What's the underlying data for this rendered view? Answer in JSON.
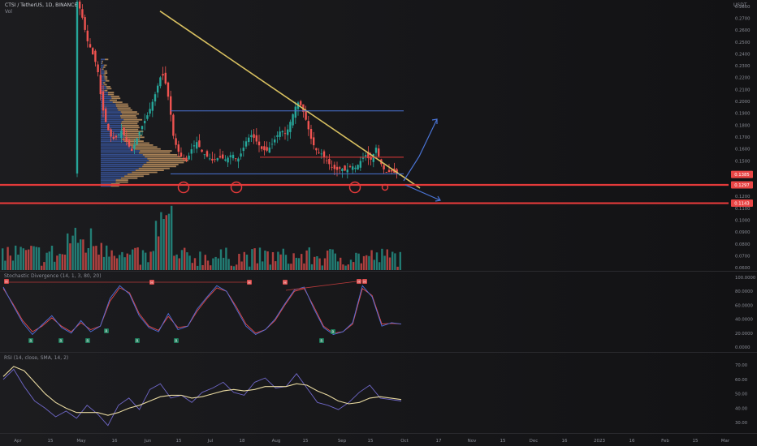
{
  "header": {
    "symbol_line": "CTSI / TetherUS, 1D, BINANCE",
    "volume_label": "Vol",
    "currency": "USDT"
  },
  "price_pane": {
    "price_ticks": [
      "0.2800",
      "0.2700",
      "0.2600",
      "0.2500",
      "0.2400",
      "0.2300",
      "0.2200",
      "0.2100",
      "0.2000",
      "0.1900",
      "0.1800",
      "0.1700",
      "0.1600",
      "0.1500",
      "0.1400",
      "0.1300",
      "0.1200",
      "0.1100",
      "0.1000",
      "0.0900",
      "0.0800",
      "0.0700",
      "0.0600"
    ],
    "current_price_tag": "0.1385",
    "support_tag_1": "0.1297",
    "support_tag_2": "0.1143"
  },
  "stoch_pane": {
    "title": "Stochastic Divergence (14, 1, 3, 80, 20)",
    "ticks": [
      "100.0000",
      "80.0000",
      "60.0000",
      "40.0000",
      "20.0000",
      "0.0000"
    ],
    "hidden_label": "H",
    "regular_label": "R"
  },
  "rsi_pane": {
    "title": "RSI (14, close, SMA, 14, 2)",
    "ticks": [
      "70.00",
      "60.00",
      "50.00",
      "40.00",
      "30.00"
    ]
  },
  "time_axis": [
    "Apr",
    "15",
    "May",
    "16",
    "Jun",
    "15",
    "Jul",
    "18",
    "Aug",
    "15",
    "Sep",
    "15",
    "Oct",
    "17",
    "Nov",
    "15",
    "Dec",
    "16",
    "2023",
    "16",
    "Feb",
    "15",
    "Mar"
  ],
  "colors": {
    "background": "#141416",
    "up": "#26a69a",
    "down": "#ef5350",
    "resistance_blue": "#4a74d6",
    "trendline_yellow": "#d8c060",
    "support_red": "#e43a3a",
    "stoch_k": "#4f6fdc",
    "stoch_d": "#e24a4a",
    "rsi_line": "#6f67c8",
    "rsi_ma": "#e8d9a0"
  },
  "chart_data": [
    {
      "type": "candlestick",
      "title": "CTSI / TetherUS, 1D, BINANCE",
      "x": [
        "Apr",
        "May",
        "Jun",
        "Jul",
        "Aug",
        "Sep",
        "Oct"
      ],
      "ylim": [
        0.058,
        0.284
      ],
      "annotations": {
        "trendline_from": 0.276,
        "trendline_to": 0.127,
        "range_high": 0.192,
        "range_mid": 0.153,
        "range_low": 0.139,
        "support_1": 0.1297,
        "support_2": 0.1143,
        "current_price": 0.1385
      }
    },
    {
      "type": "line",
      "title": "Stochastic Divergence (14, 1, 3, 80, 20)",
      "ylim": [
        0,
        100
      ],
      "series": [
        {
          "name": "K",
          "values": [
            86,
            60,
            35,
            18,
            32,
            45,
            28,
            20,
            38,
            22,
            30,
            70,
            88,
            76,
            45,
            28,
            22,
            48,
            25,
            30,
            55,
            72,
            88,
            80,
            55,
            30,
            18,
            25,
            40,
            62,
            82,
            86,
            55,
            28,
            18,
            22,
            35,
            88,
            72,
            30,
            35,
            33
          ]
        },
        {
          "name": "D",
          "values": [
            84,
            62,
            38,
            22,
            30,
            42,
            30,
            22,
            35,
            25,
            30,
            66,
            85,
            78,
            48,
            30,
            24,
            44,
            28,
            30,
            52,
            70,
            85,
            80,
            58,
            33,
            20,
            25,
            38,
            60,
            80,
            84,
            58,
            30,
            20,
            22,
            33,
            84,
            74,
            33,
            34,
            33
          ]
        }
      ]
    },
    {
      "type": "line",
      "title": "RSI (14, close, SMA, 14, 2)",
      "ylim": [
        25,
        74
      ],
      "series": [
        {
          "name": "RSI",
          "values": [
            60,
            67,
            55,
            45,
            40,
            34,
            38,
            33,
            42,
            36,
            28,
            42,
            47,
            39,
            53,
            57,
            47,
            49,
            44,
            51,
            54,
            58,
            51,
            49,
            58,
            61,
            54,
            55,
            64,
            54,
            44,
            42,
            39,
            44,
            51,
            56,
            47,
            46,
            45
          ]
        },
        {
          "name": "RSI MA",
          "values": [
            62,
            69,
            66,
            58,
            50,
            44,
            40,
            37,
            37,
            37,
            35,
            37,
            40,
            42,
            45,
            48,
            49,
            49,
            47,
            48,
            50,
            52,
            53,
            52,
            53,
            55,
            55,
            55,
            57,
            56,
            52,
            49,
            45,
            43,
            44,
            47,
            48,
            47,
            46
          ]
        }
      ]
    }
  ]
}
